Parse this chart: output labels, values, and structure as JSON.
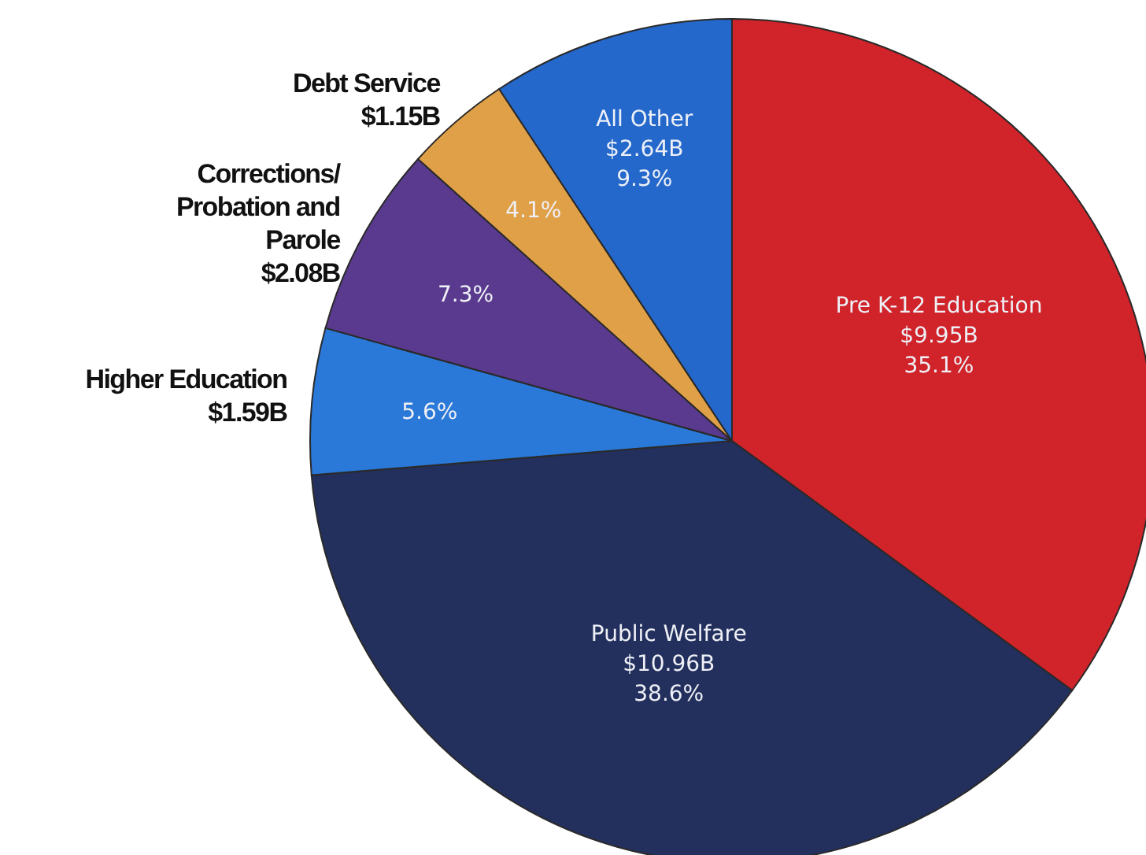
{
  "chart_data": {
    "type": "pie",
    "categories": [
      "Pre K-12 Education",
      "Public Welfare",
      "Higher Education",
      "Corrections/ Probation and Parole",
      "Debt Service",
      "All Other"
    ],
    "values": [
      9.95,
      10.96,
      1.59,
      2.08,
      1.15,
      2.64
    ],
    "colors": [
      "#d0232a",
      "#23305e",
      "#2a78d8",
      "#5a3a8e",
      "#e0a048",
      "#2468cc"
    ],
    "value_labels": [
      "$9.95B",
      "$10.96B",
      "$1.59B",
      "$2.08B",
      "$1.15B",
      "$2.64B"
    ],
    "annotations": [
      {
        "text": "35.1%",
        "x": "Pre K-12 Education"
      },
      {
        "text": "38.6%",
        "x": "Public Welfare"
      },
      {
        "text": "5.6%",
        "x": "Higher Education"
      },
      {
        "text": "7.3%",
        "x": "Corrections/ Probation and Parole"
      },
      {
        "text": "4.1%",
        "x": "Debt Service"
      },
      {
        "text": "9.3%",
        "x": "All Other"
      }
    ]
  }
}
